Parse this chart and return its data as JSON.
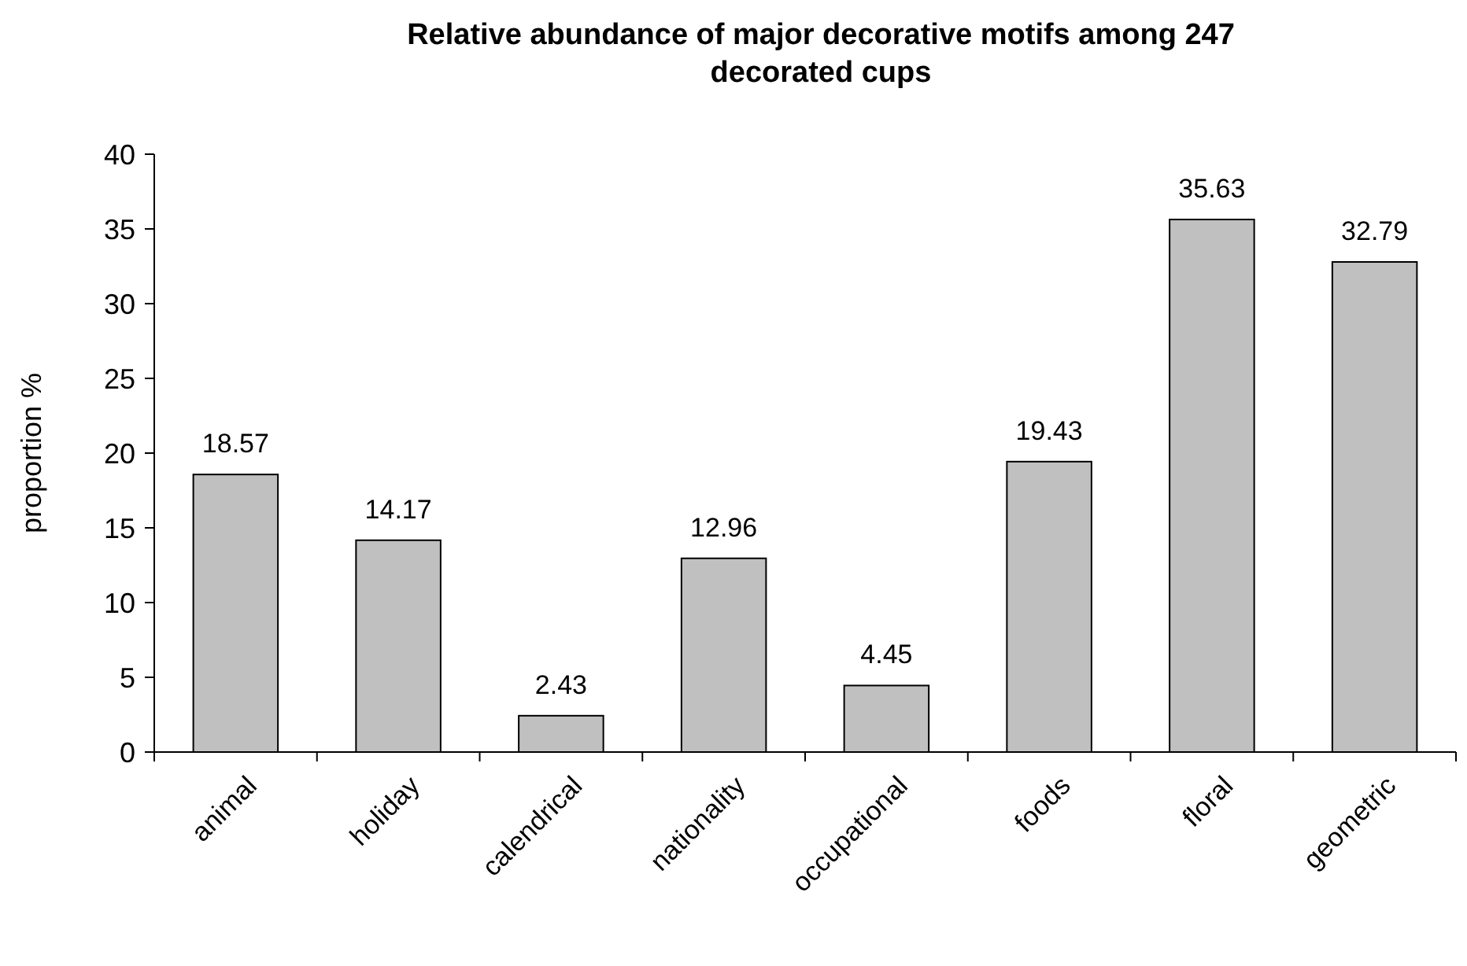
{
  "chart_data": {
    "type": "bar",
    "title": "Relative abundance of major decorative motifs among 247 decorated cups",
    "ylabel": "proportion %",
    "categories": [
      "animal",
      "holiday",
      "calendrical",
      "nationality",
      "occupational",
      "foods",
      "floral",
      "geometric"
    ],
    "values": [
      18.57,
      14.17,
      2.43,
      12.96,
      4.45,
      19.43,
      35.63,
      32.79
    ],
    "color": "#c0c0c0",
    "ylim": [
      0,
      40
    ],
    "yticks": [
      0,
      5,
      10,
      15,
      20,
      25,
      30,
      35,
      40
    ],
    "data_labels": true
  }
}
